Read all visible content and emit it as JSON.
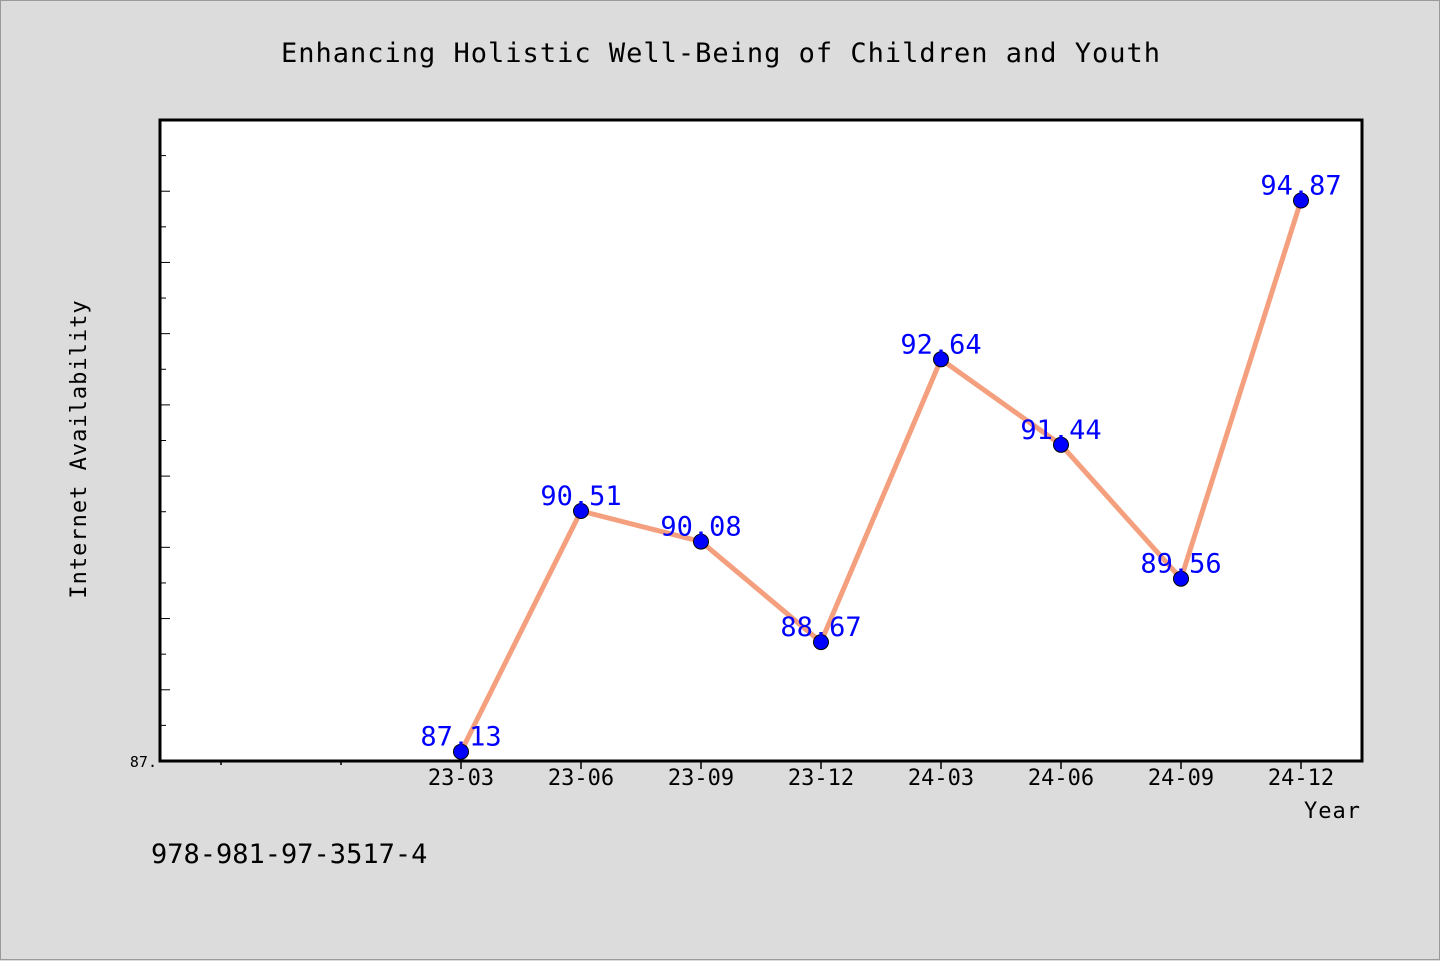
{
  "chart_data": {
    "type": "line",
    "title": "Enhancing Holistic Well-Being of Children and Youth",
    "xlabel": "Year",
    "ylabel": "Internet Availability",
    "categories": [
      "23-03",
      "23-06",
      "23-09",
      "23-12",
      "24-03",
      "24-06",
      "24-09",
      "24-12"
    ],
    "series": [
      {
        "values": [
          87.13,
          90.51,
          90.08,
          88.67,
          92.64,
          91.44,
          89.56,
          94.87
        ]
      }
    ],
    "data_labels": [
      "87.13",
      "90.51",
      "90.08",
      "88.67",
      "92.64",
      "91.44",
      "89.56",
      "94.87"
    ],
    "ytick_label": "87.",
    "ylim": [
      87.0,
      96.0
    ],
    "line_color": "#f4a07e",
    "marker_color": "#0000ff",
    "label_color": "#0000ff",
    "grid": false,
    "legend": "none"
  },
  "footer": {
    "isbn": "978-981-97-3517-4"
  }
}
